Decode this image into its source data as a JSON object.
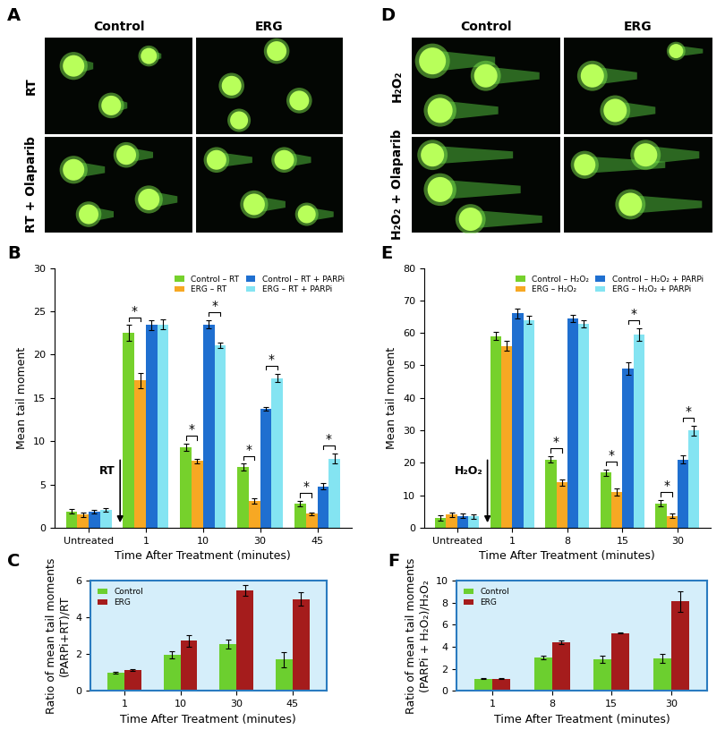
{
  "chart_data": [
    {
      "type": "bar",
      "panel": "B",
      "xlabel": "Time After Treatment (minutes)",
      "ylabel": "Mean tail moment",
      "categories": [
        "Untreated",
        "1",
        "10",
        "30",
        "45"
      ],
      "series": [
        {
          "name": "Control – RT",
          "color": "#76d12c",
          "values": [
            1.9,
            22.5,
            9.3,
            7.0,
            2.8
          ],
          "errors": [
            0.3,
            0.9,
            0.4,
            0.4,
            0.3
          ]
        },
        {
          "name": "ERG – RT",
          "color": "#f7a823",
          "values": [
            1.5,
            17.0,
            7.7,
            3.1,
            1.6
          ],
          "errors": [
            0.3,
            0.9,
            0.3,
            0.3,
            0.2
          ]
        },
        {
          "name": "Control – RT + PARPi",
          "color": "#1f6fd0",
          "values": [
            1.9,
            23.4,
            23.5,
            13.7,
            4.8
          ],
          "errors": [
            0.2,
            0.6,
            0.5,
            0.2,
            0.4
          ]
        },
        {
          "name": "ERG – RT + PARPi",
          "color": "#84e4f2",
          "values": [
            2.1,
            23.5,
            21.1,
            17.3,
            8.0
          ],
          "errors": [
            0.2,
            0.6,
            0.3,
            0.5,
            0.6
          ]
        }
      ],
      "ylim": [
        0,
        30
      ],
      "yticks": [
        0,
        5,
        10,
        15,
        20,
        25,
        30
      ],
      "legend": "upper right",
      "arrow_label": "RT",
      "annotations": [
        {
          "text": "*",
          "category": "1",
          "series": [
            "Control – RT",
            "ERG – RT"
          ]
        },
        {
          "text": "*",
          "category": "10",
          "series": [
            "Control – RT",
            "ERG – RT"
          ]
        },
        {
          "text": "*",
          "category": "10",
          "series": [
            "Control – RT + PARPi",
            "ERG – RT + PARPi"
          ]
        },
        {
          "text": "*",
          "category": "30",
          "series": [
            "Control – RT",
            "ERG – RT"
          ]
        },
        {
          "text": "*",
          "category": "30",
          "series": [
            "Control – RT + PARPi",
            "ERG – RT + PARPi"
          ]
        },
        {
          "text": "*",
          "category": "45",
          "series": [
            "Control – RT",
            "ERG – RT"
          ]
        },
        {
          "text": "*",
          "category": "45",
          "series": [
            "Control – RT + PARPi",
            "ERG – RT + PARPi"
          ]
        }
      ]
    },
    {
      "type": "bar",
      "panel": "C",
      "xlabel": "Time After Treatment (minutes)",
      "ylabel": "Ratio of mean tail moments\n(PARPi+RT)/RT",
      "categories": [
        "1",
        "10",
        "30",
        "45"
      ],
      "series": [
        {
          "name": "Control",
          "color": "#6ccf2f",
          "values": [
            1.0,
            1.95,
            2.55,
            1.7
          ],
          "errors": [
            0.05,
            0.2,
            0.25,
            0.4
          ]
        },
        {
          "name": "ERG",
          "color": "#a51c1c",
          "values": [
            1.15,
            2.72,
            5.45,
            5.0
          ],
          "errors": [
            0.05,
            0.3,
            0.3,
            0.35
          ]
        }
      ],
      "ylim": [
        0,
        6
      ],
      "yticks": [
        0,
        2,
        4,
        6
      ],
      "legend": "upper left"
    },
    {
      "type": "bar",
      "panel": "E",
      "xlabel": "Time After Treatment (minutes)",
      "ylabel": "Mean tail moment",
      "categories": [
        "Untreated",
        "1",
        "8",
        "15",
        "30"
      ],
      "series": [
        {
          "name": "Control – H₂O₂",
          "color": "#76d12c",
          "values": [
            3.0,
            59.0,
            21.0,
            17.0,
            7.5
          ],
          "errors": [
            0.8,
            1.2,
            1.0,
            1.0,
            1.0
          ]
        },
        {
          "name": "ERG – H₂O₂",
          "color": "#f7a823",
          "values": [
            4.0,
            56.0,
            14.0,
            11.0,
            3.7
          ],
          "errors": [
            0.7,
            1.5,
            1.0,
            1.0,
            0.6
          ]
        },
        {
          "name": "Control – H₂O₂ + PARPi",
          "color": "#1f6fd0",
          "values": [
            3.7,
            66.0,
            64.5,
            49.0,
            21.0
          ],
          "errors": [
            0.7,
            1.5,
            1.0,
            2.0,
            1.3
          ]
        },
        {
          "name": "ERG – H₂O₂ + PARPi",
          "color": "#84e4f2",
          "values": [
            3.5,
            64.0,
            62.8,
            59.5,
            30.0
          ],
          "errors": [
            0.7,
            1.3,
            1.0,
            2.0,
            1.5
          ]
        }
      ],
      "ylim": [
        0,
        80
      ],
      "yticks": [
        0,
        10,
        20,
        30,
        40,
        50,
        60,
        70,
        80
      ],
      "legend": "upper right",
      "arrow_label": "H₂O₂",
      "annotations": [
        {
          "text": "*",
          "category": "8",
          "series": [
            "Control – H₂O₂",
            "ERG – H₂O₂"
          ]
        },
        {
          "text": "*",
          "category": "15",
          "series": [
            "Control – H₂O₂",
            "ERG – H₂O₂"
          ]
        },
        {
          "text": "*",
          "category": "15",
          "series": [
            "Control – H₂O₂ + PARPi",
            "ERG – H₂O₂ + PARPi"
          ]
        },
        {
          "text": "*",
          "category": "30",
          "series": [
            "Control – H₂O₂",
            "ERG – H₂O₂"
          ]
        },
        {
          "text": "*",
          "category": "30",
          "series": [
            "Control – H₂O₂ + PARPi",
            "ERG – H₂O₂ + PARPi"
          ]
        }
      ]
    },
    {
      "type": "bar",
      "panel": "F",
      "xlabel": "Time After Treatment (minutes)",
      "ylabel": "Ratio of mean tail moments\n(PARPi + H₂O₂)/H₂O₂",
      "categories": [
        "1",
        "8",
        "15",
        "30"
      ],
      "series": [
        {
          "name": "Control",
          "color": "#6ccf2f",
          "values": [
            1.1,
            3.05,
            2.85,
            2.95
          ],
          "errors": [
            0.05,
            0.15,
            0.35,
            0.4
          ]
        },
        {
          "name": "ERG",
          "color": "#a51c1c",
          "values": [
            1.1,
            4.4,
            5.25,
            8.1
          ],
          "errors": [
            0.05,
            0.15,
            0.05,
            0.95
          ]
        }
      ],
      "ylim": [
        0,
        10
      ],
      "yticks": [
        0,
        2,
        4,
        6,
        8,
        10
      ],
      "legend": "upper left"
    }
  ],
  "images": [
    {
      "panel": "A",
      "columns": [
        "Control",
        "ERG"
      ],
      "rows": [
        "RT",
        "RT + Olaparib"
      ]
    },
    {
      "panel": "D",
      "columns": [
        "Control",
        "ERG"
      ],
      "rows": [
        "H₂O₂",
        "H₂O₂ + Olaparib"
      ]
    }
  ]
}
